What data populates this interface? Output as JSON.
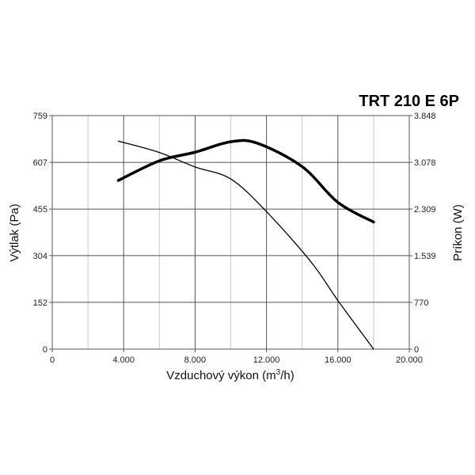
{
  "chart_data": {
    "type": "line",
    "title": "TRT 210 E 6P",
    "xlabel": "Vzduchový výkon (m",
    "xlabel_sup": "3",
    "xlabel_end": "/h)",
    "ylabel_left": "Výtlak (Pa)",
    "ylabel_right": "Príkon (W)",
    "xlim": [
      0,
      20000
    ],
    "ylim_left": [
      0,
      759
    ],
    "ylim_right": [
      0,
      3848
    ],
    "x_ticks": [
      0,
      4000,
      8000,
      12000,
      16000,
      20000
    ],
    "x_tick_labels": [
      "0",
      "4.000",
      "8.000",
      "12.000",
      "16.000",
      "20.000"
    ],
    "y_left_ticks": [
      0,
      152,
      304,
      455,
      607,
      759
    ],
    "y_left_tick_labels": [
      "0",
      "152",
      "304",
      "455",
      "607",
      "759"
    ],
    "y_right_ticks": [
      0,
      770,
      1539,
      2309,
      3078,
      3848
    ],
    "y_right_tick_labels": [
      "0",
      "770",
      "1.539",
      "2.309",
      "3.078",
      "3.848"
    ],
    "grid": true,
    "series": [
      {
        "axis": "left",
        "style": "thin",
        "x": [
          3700,
          6000,
          8000,
          10000,
          12000,
          14500,
          16000,
          18000
        ],
        "y": [
          676,
          639,
          592,
          553,
          447,
          283,
          158,
          0
        ]
      },
      {
        "axis": "left",
        "style": "thick",
        "x": [
          3700,
          6000,
          8000,
          10000,
          11500,
          14000,
          16000,
          18000
        ],
        "y": [
          548,
          612,
          640,
          674,
          669,
          593,
          477,
          413
        ]
      }
    ]
  }
}
